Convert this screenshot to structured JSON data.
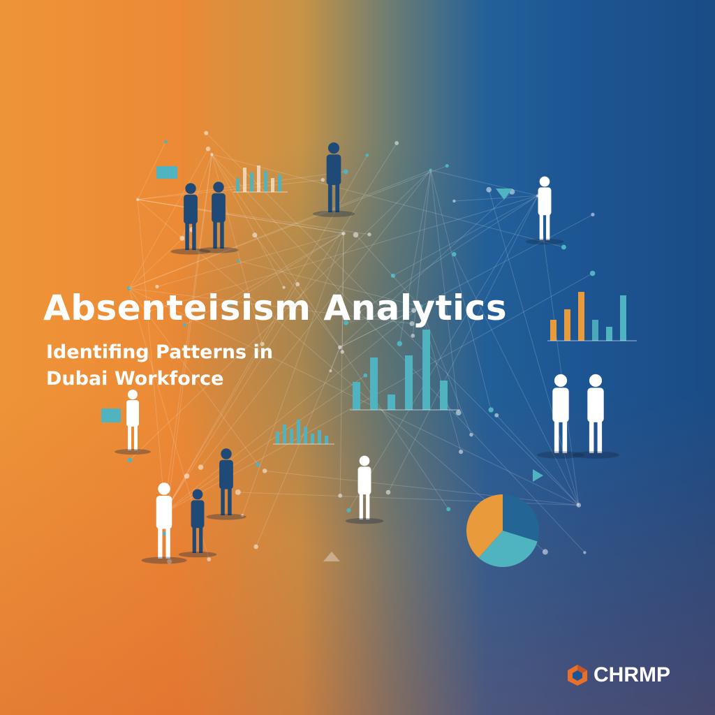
{
  "poster": {
    "title": "Absenteisism Analytics",
    "subtitle_line1": "Identifing Patterns in",
    "subtitle_line2": "Dubai Workforce"
  },
  "brand": {
    "name": "CHRMP",
    "logo_icon": "hexagon-logo-icon",
    "logo_color": "#e8702a"
  },
  "colors": {
    "orange": "#ee9438",
    "blue": "#1a4c86",
    "teal": "#4fb3c0",
    "accent_orange": "#e99a3a"
  }
}
